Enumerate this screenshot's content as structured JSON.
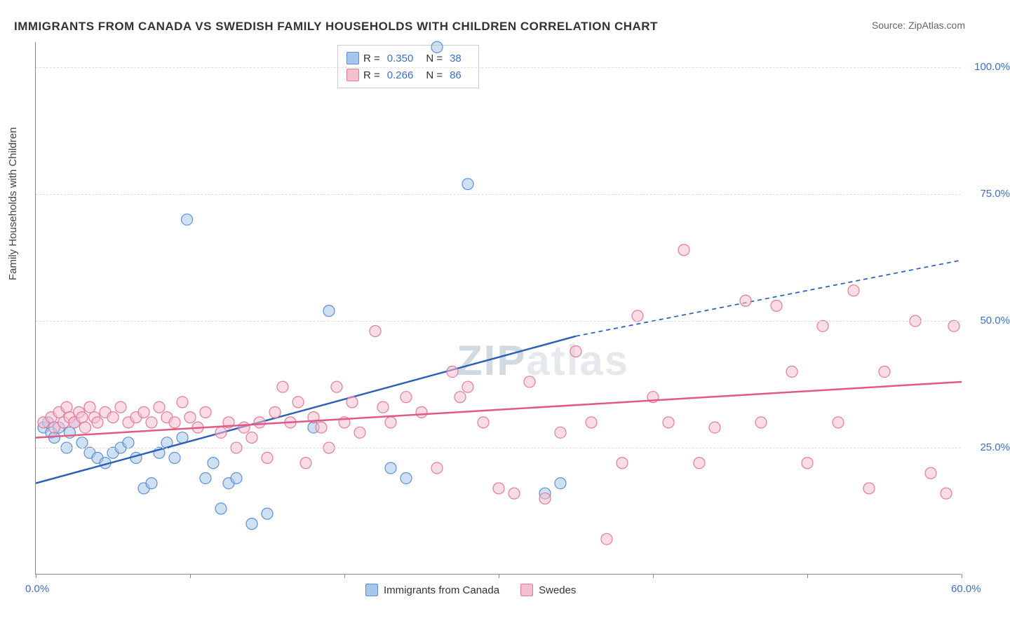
{
  "title": "IMMIGRANTS FROM CANADA VS SWEDISH FAMILY HOUSEHOLDS WITH CHILDREN CORRELATION CHART",
  "source": "Source: ZipAtlas.com",
  "watermark": "ZIPAtlas",
  "y_axis_label": "Family Households with Children",
  "chart": {
    "type": "scatter",
    "xlim": [
      0,
      60
    ],
    "ylim": [
      0,
      105
    ],
    "x_ticks": [
      0,
      10,
      20,
      30,
      40,
      50,
      60
    ],
    "x_tick_labels": {
      "0": "0.0%",
      "60": "60.0%"
    },
    "y_ticks": [
      25,
      50,
      75,
      100
    ],
    "y_tick_labels": {
      "25": "25.0%",
      "50": "50.0%",
      "75": "75.0%",
      "100": "100.0%"
    },
    "grid_color": "#dddddd",
    "background_color": "#ffffff",
    "axis_color": "#888888",
    "tick_label_color": "#3b6fc4",
    "marker_radius": 8,
    "marker_opacity": 0.55,
    "series": [
      {
        "name": "Immigrants from Canada",
        "legend_label": "Immigrants from Canada",
        "color_fill": "#a9c6ea",
        "color_stroke": "#5b8fd6",
        "R": "0.350",
        "N": "38",
        "trend": {
          "x1": 0,
          "y1": 18,
          "x2": 35,
          "y2": 47,
          "x2_ext": 60,
          "y2_ext": 62,
          "color": "#2d5fb8",
          "width": 2.5,
          "dash_after_x": 35
        },
        "points": [
          [
            0.5,
            29
          ],
          [
            0.8,
            30
          ],
          [
            1.0,
            28
          ],
          [
            1.2,
            27
          ],
          [
            1.5,
            29
          ],
          [
            2.0,
            25
          ],
          [
            2.2,
            28
          ],
          [
            2.5,
            30
          ],
          [
            3.0,
            26
          ],
          [
            3.5,
            24
          ],
          [
            4.0,
            23
          ],
          [
            4.5,
            22
          ],
          [
            5.0,
            24
          ],
          [
            5.5,
            25
          ],
          [
            6.0,
            26
          ],
          [
            6.5,
            23
          ],
          [
            7.0,
            17
          ],
          [
            7.5,
            18
          ],
          [
            8.0,
            24
          ],
          [
            8.5,
            26
          ],
          [
            9.0,
            23
          ],
          [
            9.5,
            27
          ],
          [
            9.8,
            70
          ],
          [
            11.0,
            19
          ],
          [
            11.5,
            22
          ],
          [
            12.0,
            13
          ],
          [
            12.5,
            18
          ],
          [
            13.0,
            19
          ],
          [
            14.0,
            10
          ],
          [
            15.0,
            12
          ],
          [
            18.0,
            29
          ],
          [
            19.0,
            52
          ],
          [
            23.0,
            21
          ],
          [
            24.0,
            19
          ],
          [
            26.0,
            104
          ],
          [
            28.0,
            77
          ],
          [
            33.0,
            16
          ],
          [
            34.0,
            18
          ]
        ]
      },
      {
        "name": "Swedes",
        "legend_label": "Swedes",
        "color_fill": "#f4c0cd",
        "color_stroke": "#e37a9a",
        "R": "0.266",
        "N": "86",
        "trend": {
          "x1": 0,
          "y1": 27,
          "x2": 60,
          "y2": 38,
          "color": "#e05a85",
          "width": 2.5
        },
        "points": [
          [
            0.5,
            30
          ],
          [
            1.0,
            31
          ],
          [
            1.2,
            29
          ],
          [
            1.5,
            32
          ],
          [
            1.8,
            30
          ],
          [
            2.0,
            33
          ],
          [
            2.2,
            31
          ],
          [
            2.5,
            30
          ],
          [
            2.8,
            32
          ],
          [
            3.0,
            31
          ],
          [
            3.2,
            29
          ],
          [
            3.5,
            33
          ],
          [
            3.8,
            31
          ],
          [
            4.0,
            30
          ],
          [
            4.5,
            32
          ],
          [
            5.0,
            31
          ],
          [
            5.5,
            33
          ],
          [
            6.0,
            30
          ],
          [
            6.5,
            31
          ],
          [
            7.0,
            32
          ],
          [
            7.5,
            30
          ],
          [
            8.0,
            33
          ],
          [
            8.5,
            31
          ],
          [
            9.0,
            30
          ],
          [
            9.5,
            34
          ],
          [
            10.0,
            31
          ],
          [
            10.5,
            29
          ],
          [
            11.0,
            32
          ],
          [
            12.0,
            28
          ],
          [
            12.5,
            30
          ],
          [
            13.0,
            25
          ],
          [
            13.5,
            29
          ],
          [
            14.0,
            27
          ],
          [
            14.5,
            30
          ],
          [
            15.0,
            23
          ],
          [
            15.5,
            32
          ],
          [
            16.0,
            37
          ],
          [
            16.5,
            30
          ],
          [
            17.0,
            34
          ],
          [
            17.5,
            22
          ],
          [
            18.0,
            31
          ],
          [
            18.5,
            29
          ],
          [
            19.0,
            25
          ],
          [
            19.5,
            37
          ],
          [
            20.0,
            30
          ],
          [
            20.5,
            34
          ],
          [
            21.0,
            28
          ],
          [
            22.0,
            48
          ],
          [
            22.5,
            33
          ],
          [
            23.0,
            30
          ],
          [
            24.0,
            35
          ],
          [
            25.0,
            32
          ],
          [
            26.0,
            21
          ],
          [
            27.0,
            40
          ],
          [
            27.5,
            35
          ],
          [
            28.0,
            37
          ],
          [
            29.0,
            30
          ],
          [
            30.0,
            17
          ],
          [
            31.0,
            16
          ],
          [
            32.0,
            38
          ],
          [
            33.0,
            15
          ],
          [
            34.0,
            28
          ],
          [
            35.0,
            44
          ],
          [
            36.0,
            30
          ],
          [
            37.0,
            7
          ],
          [
            38.0,
            22
          ],
          [
            39.0,
            51
          ],
          [
            40.0,
            35
          ],
          [
            41.0,
            30
          ],
          [
            42.0,
            64
          ],
          [
            43.0,
            22
          ],
          [
            44.0,
            29
          ],
          [
            46.0,
            54
          ],
          [
            47.0,
            30
          ],
          [
            48.0,
            53
          ],
          [
            49.0,
            40
          ],
          [
            50.0,
            22
          ],
          [
            51.0,
            49
          ],
          [
            52.0,
            30
          ],
          [
            53.0,
            56
          ],
          [
            54.0,
            17
          ],
          [
            55.0,
            40
          ],
          [
            57.0,
            50
          ],
          [
            58.0,
            20
          ],
          [
            59.0,
            16
          ],
          [
            59.5,
            49
          ]
        ]
      }
    ]
  },
  "legend_bottom": [
    {
      "label": "Immigrants from Canada",
      "fill": "#a9c6ea",
      "stroke": "#5b8fd6"
    },
    {
      "label": "Swedes",
      "fill": "#f4c0cd",
      "stroke": "#e37a9a"
    }
  ]
}
